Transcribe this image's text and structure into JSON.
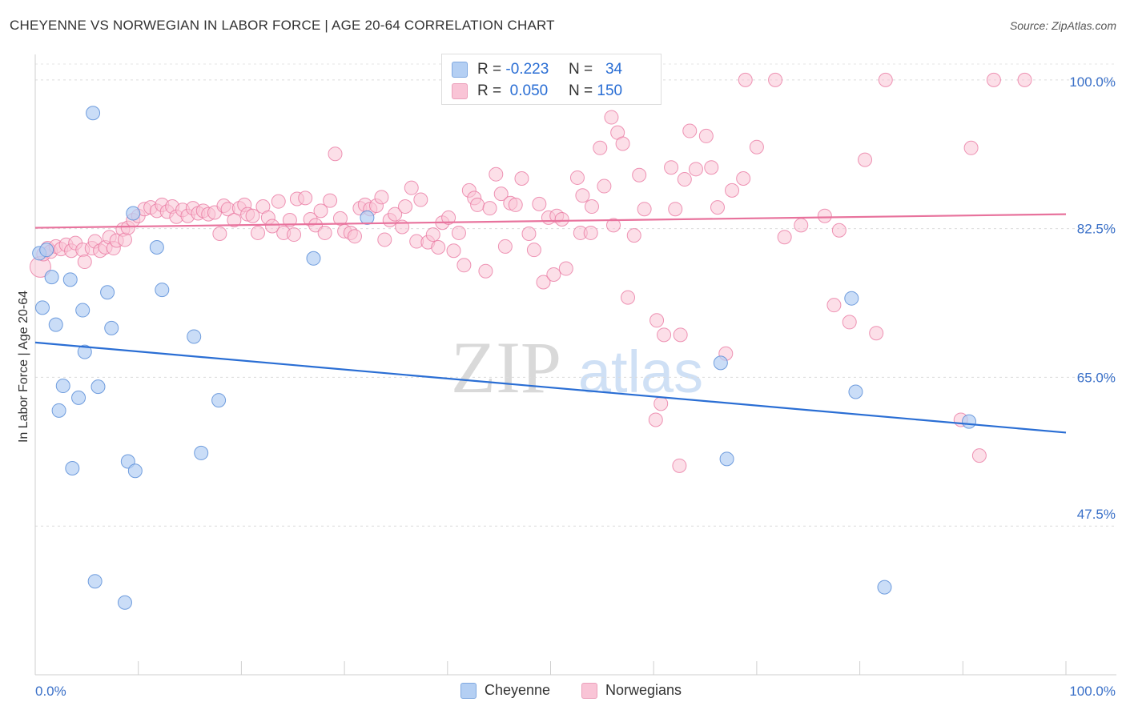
{
  "title": "CHEYENNE VS NORWEGIAN IN LABOR FORCE | AGE 20-64 CORRELATION CHART",
  "source": "Source: ZipAtlas.com",
  "watermark": {
    "zip": "ZIP",
    "atlas": "atlas"
  },
  "legend": {
    "cheyenne": {
      "r_label": "R =",
      "r_value": "-0.223",
      "n_label": "N =",
      "n_value": "34"
    },
    "norwegians": {
      "r_label": "R =",
      "r_value": "0.050",
      "n_label": "N =",
      "n_value": "150"
    }
  },
  "bottom_legend": {
    "cheyenne": "Cheyenne",
    "norwegians": "Norwegians"
  },
  "colors": {
    "blue": "#2a6ed4",
    "blue_fill": "#b4cff3",
    "pink": "#e8739d",
    "pink_fill": "#f9c4d6",
    "axis_label": "#3a70c8"
  },
  "chart_data": {
    "type": "scatter",
    "ylabel": "In Labor Force | Age 20-64",
    "xlabel": "",
    "xlim": [
      0,
      100
    ],
    "ylim": [
      30,
      103
    ],
    "x_tick_labels": [
      {
        "value": 0,
        "label": "0.0%"
      },
      {
        "value": 100,
        "label": "100.0%"
      }
    ],
    "y_tick_labels": [
      {
        "value": 100,
        "label": "100.0%"
      },
      {
        "value": 82.5,
        "label": "82.5%"
      },
      {
        "value": 65,
        "label": "65.0%"
      },
      {
        "value": 47.5,
        "label": "47.5%"
      }
    ],
    "series": [
      {
        "name": "Cheyenne",
        "r": -0.223,
        "n": 34,
        "trend": {
          "x0": 0,
          "y0": 69.1,
          "x1": 100,
          "y1": 58.5
        },
        "points": [
          [
            5.6,
            96.1
          ],
          [
            9.5,
            84.3
          ],
          [
            32.2,
            83.8
          ],
          [
            0.4,
            79.6
          ],
          [
            1.1,
            80.0
          ],
          [
            11.8,
            80.3
          ],
          [
            27.0,
            79.0
          ],
          [
            1.6,
            76.8
          ],
          [
            3.4,
            76.5
          ],
          [
            7.0,
            75.0
          ],
          [
            12.3,
            75.3
          ],
          [
            0.7,
            73.2
          ],
          [
            4.6,
            72.9
          ],
          [
            2.0,
            71.2
          ],
          [
            7.4,
            70.8
          ],
          [
            15.4,
            69.8
          ],
          [
            4.8,
            68.0
          ],
          [
            2.7,
            64.0
          ],
          [
            6.1,
            63.9
          ],
          [
            4.2,
            62.6
          ],
          [
            17.8,
            62.3
          ],
          [
            2.3,
            61.1
          ],
          [
            66.5,
            66.7
          ],
          [
            79.2,
            74.3
          ],
          [
            79.6,
            63.3
          ],
          [
            90.6,
            59.8
          ],
          [
            16.1,
            56.1
          ],
          [
            9.0,
            55.1
          ],
          [
            9.7,
            54.0
          ],
          [
            3.6,
            54.3
          ],
          [
            67.1,
            55.4
          ],
          [
            5.8,
            41.0
          ],
          [
            8.7,
            38.5
          ],
          [
            82.4,
            40.3
          ]
        ]
      },
      {
        "name": "Norwegians",
        "r": 0.05,
        "n": 150,
        "trend": {
          "x0": 0,
          "y0": 82.6,
          "x1": 100,
          "y1": 84.2
        },
        "points": [
          [
            0.5,
            78.0
          ],
          [
            0.8,
            79.5
          ],
          [
            1.2,
            80.2
          ],
          [
            1.5,
            79.8
          ],
          [
            2.0,
            80.4
          ],
          [
            2.5,
            80.1
          ],
          [
            3.0,
            80.6
          ],
          [
            3.5,
            79.9
          ],
          [
            3.9,
            80.8
          ],
          [
            4.6,
            80.0
          ],
          [
            4.8,
            78.6
          ],
          [
            5.5,
            80.2
          ],
          [
            5.8,
            81.0
          ],
          [
            6.3,
            79.9
          ],
          [
            6.8,
            80.3
          ],
          [
            7.2,
            81.5
          ],
          [
            7.6,
            80.2
          ],
          [
            7.9,
            81.1
          ],
          [
            8.5,
            82.4
          ],
          [
            8.7,
            81.2
          ],
          [
            9.0,
            82.6
          ],
          [
            9.5,
            83.5
          ],
          [
            10.0,
            84.0
          ],
          [
            10.6,
            84.8
          ],
          [
            11.2,
            85.0
          ],
          [
            11.8,
            84.6
          ],
          [
            12.3,
            85.3
          ],
          [
            12.8,
            84.5
          ],
          [
            13.3,
            85.1
          ],
          [
            13.7,
            83.9
          ],
          [
            14.3,
            84.7
          ],
          [
            14.8,
            84.0
          ],
          [
            15.3,
            84.9
          ],
          [
            15.8,
            84.3
          ],
          [
            16.3,
            84.6
          ],
          [
            16.8,
            84.2
          ],
          [
            17.4,
            84.4
          ],
          [
            17.9,
            81.9
          ],
          [
            18.3,
            85.2
          ],
          [
            18.7,
            84.8
          ],
          [
            19.3,
            83.5
          ],
          [
            19.8,
            84.9
          ],
          [
            20.3,
            85.3
          ],
          [
            20.6,
            84.2
          ],
          [
            21.1,
            84.0
          ],
          [
            21.6,
            82.0
          ],
          [
            22.1,
            85.1
          ],
          [
            22.6,
            83.8
          ],
          [
            23.0,
            82.8
          ],
          [
            23.6,
            85.7
          ],
          [
            24.1,
            82.0
          ],
          [
            24.7,
            83.5
          ],
          [
            25.1,
            81.8
          ],
          [
            25.4,
            86.0
          ],
          [
            26.2,
            86.1
          ],
          [
            26.7,
            83.6
          ],
          [
            27.2,
            82.9
          ],
          [
            27.7,
            84.6
          ],
          [
            28.1,
            82.0
          ],
          [
            28.6,
            85.8
          ],
          [
            29.1,
            91.3
          ],
          [
            29.6,
            83.7
          ],
          [
            30.0,
            82.2
          ],
          [
            30.6,
            82.0
          ],
          [
            31.0,
            81.6
          ],
          [
            31.5,
            84.9
          ],
          [
            32.0,
            85.3
          ],
          [
            32.5,
            84.8
          ],
          [
            33.1,
            85.2
          ],
          [
            33.6,
            86.2
          ],
          [
            33.9,
            81.2
          ],
          [
            34.4,
            83.5
          ],
          [
            34.9,
            84.2
          ],
          [
            35.6,
            82.7
          ],
          [
            35.9,
            85.1
          ],
          [
            36.5,
            87.3
          ],
          [
            37.0,
            81.0
          ],
          [
            37.4,
            85.9
          ],
          [
            38.1,
            80.9
          ],
          [
            38.6,
            81.8
          ],
          [
            39.1,
            80.3
          ],
          [
            39.5,
            83.2
          ],
          [
            40.1,
            83.8
          ],
          [
            40.6,
            79.9
          ],
          [
            41.1,
            82.0
          ],
          [
            41.6,
            78.2
          ],
          [
            42.1,
            87.0
          ],
          [
            42.6,
            86.1
          ],
          [
            42.9,
            85.3
          ],
          [
            43.7,
            77.5
          ],
          [
            44.1,
            84.9
          ],
          [
            44.7,
            88.9
          ],
          [
            45.2,
            86.6
          ],
          [
            45.6,
            80.4
          ],
          [
            46.1,
            85.5
          ],
          [
            46.6,
            85.3
          ],
          [
            47.2,
            88.4
          ],
          [
            47.9,
            81.9
          ],
          [
            48.4,
            80.0
          ],
          [
            48.9,
            85.4
          ],
          [
            49.3,
            76.2
          ],
          [
            49.8,
            83.8
          ],
          [
            50.3,
            77.1
          ],
          [
            50.6,
            84.0
          ],
          [
            51.1,
            83.6
          ],
          [
            51.5,
            77.8
          ],
          [
            52.6,
            88.5
          ],
          [
            52.9,
            82.0
          ],
          [
            53.1,
            86.4
          ],
          [
            53.9,
            82.0
          ],
          [
            54.0,
            85.1
          ],
          [
            54.8,
            92.0
          ],
          [
            55.2,
            87.5
          ],
          [
            55.9,
            95.6
          ],
          [
            56.1,
            82.9
          ],
          [
            56.5,
            93.8
          ],
          [
            57.0,
            92.5
          ],
          [
            57.5,
            74.4
          ],
          [
            58.1,
            81.7
          ],
          [
            58.6,
            88.8
          ],
          [
            59.1,
            84.8
          ],
          [
            60.3,
            71.7
          ],
          [
            61.0,
            70.0
          ],
          [
            61.7,
            89.7
          ],
          [
            62.1,
            84.8
          ],
          [
            62.6,
            70.0
          ],
          [
            63.0,
            88.3
          ],
          [
            63.5,
            94.0
          ],
          [
            64.1,
            89.5
          ],
          [
            65.1,
            93.4
          ],
          [
            65.6,
            89.7
          ],
          [
            66.2,
            85.0
          ],
          [
            67.0,
            67.8
          ],
          [
            67.6,
            87.0
          ],
          [
            68.7,
            88.4
          ],
          [
            70.0,
            92.1
          ],
          [
            68.9,
            100.0
          ],
          [
            71.8,
            100.0
          ],
          [
            77.5,
            73.5
          ],
          [
            79.0,
            71.5
          ],
          [
            80.5,
            90.6
          ],
          [
            81.6,
            70.2
          ],
          [
            82.5,
            100.0
          ],
          [
            89.8,
            60.0
          ],
          [
            90.8,
            92.0
          ],
          [
            91.6,
            55.8
          ],
          [
            93.0,
            100.0
          ],
          [
            96.0,
            100.0
          ],
          [
            60.7,
            61.9
          ],
          [
            60.2,
            60.0
          ],
          [
            62.5,
            54.6
          ],
          [
            72.7,
            81.5
          ],
          [
            74.3,
            82.9
          ],
          [
            76.6,
            84.0
          ],
          [
            78.0,
            82.3
          ]
        ]
      }
    ]
  }
}
